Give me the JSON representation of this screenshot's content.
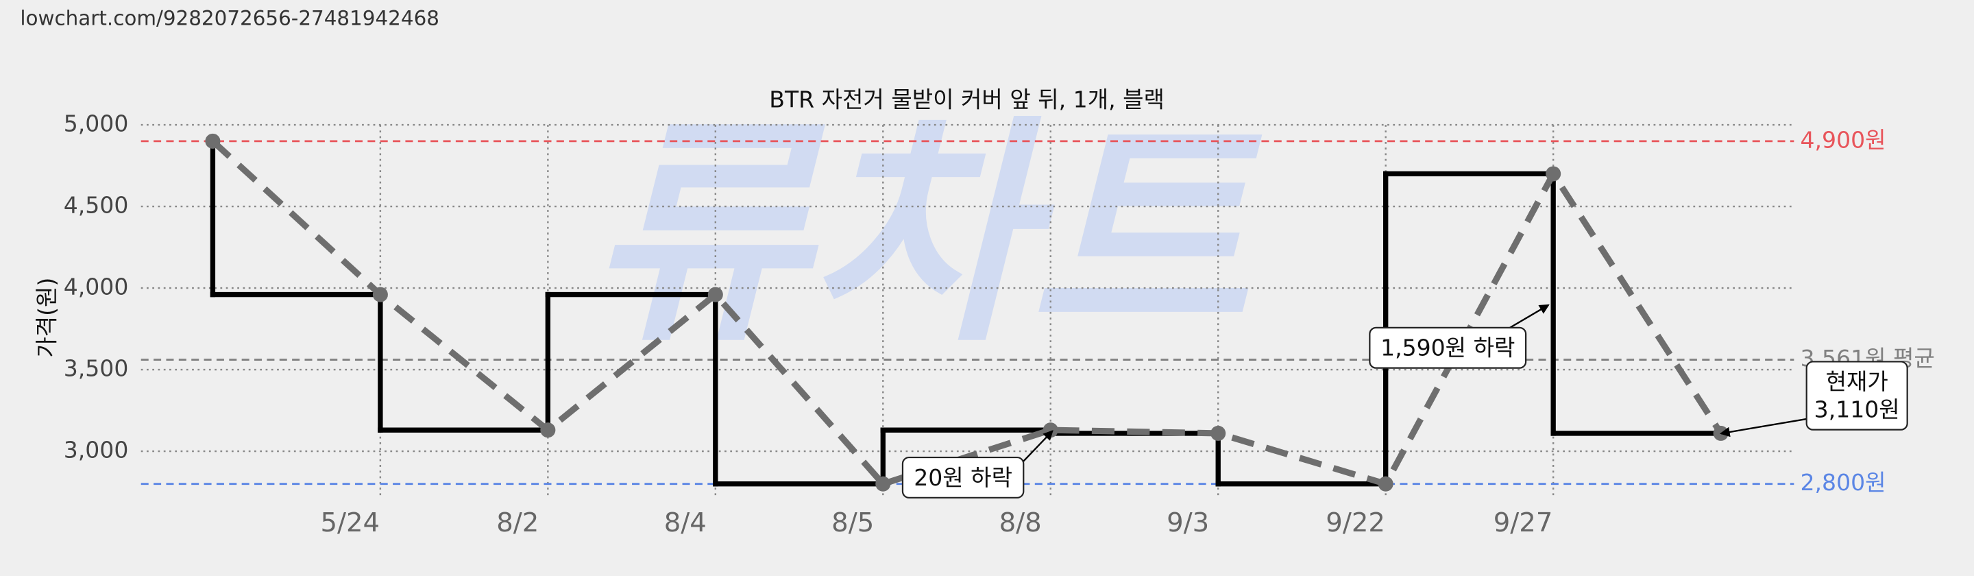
{
  "header": {
    "url": "lowchart.com/9282072656-27481942468"
  },
  "chart_data": {
    "type": "line",
    "title": "BTR 자전거 물받이 커버 앞 뒤, 1개, 블랙",
    "y_label": "가격(원)",
    "watermark": "류차트",
    "categories": [
      null,
      "5/24",
      "8/2",
      "8/4",
      "8/5",
      "8/8",
      "9/3",
      "9/22",
      "9/27",
      null
    ],
    "values": [
      4900,
      3960,
      3130,
      3960,
      2800,
      3130,
      3110,
      2800,
      4700,
      3110
    ],
    "line_color": "#6e6e6e",
    "step_color": "#000000",
    "ylim": [
      2700,
      5100
    ],
    "yticks": [
      {
        "value": 3000,
        "label": "3,000"
      },
      {
        "value": 3500,
        "label": "3,500"
      },
      {
        "value": 4000,
        "label": "4,000"
      },
      {
        "value": 4500,
        "label": "4,500"
      },
      {
        "value": 5000,
        "label": "5,000"
      }
    ],
    "grid": true,
    "reference_lines": [
      {
        "value": 4900,
        "label": "4,900원",
        "color": "#e8545a"
      },
      {
        "value": 3561,
        "label": "3,561원 평균",
        "color": "#808080"
      },
      {
        "value": 2800,
        "label": "2,800원",
        "color": "#5b86e5"
      }
    ],
    "annotations": [
      {
        "lines": [
          "20원 하락"
        ]
      },
      {
        "lines": [
          "1,590원 하락"
        ]
      },
      {
        "lines": [
          "현재가",
          "3,110원"
        ]
      }
    ]
  }
}
